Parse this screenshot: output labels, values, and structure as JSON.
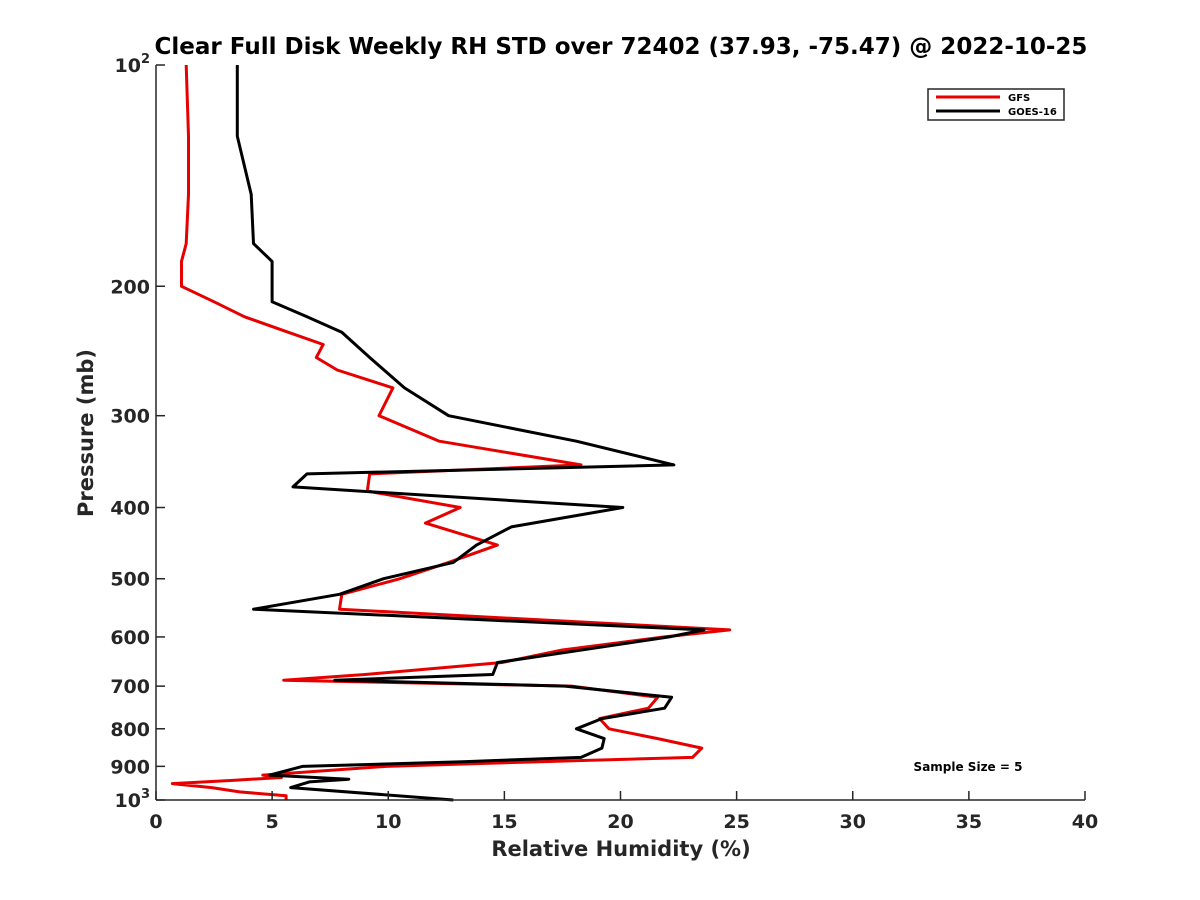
{
  "chart_data": {
    "type": "line",
    "title": "Clear Full Disk Weekly RH STD over 72402 (37.93, -75.47) @ 2022-10-25",
    "xlabel": "Relative Humidity (%)",
    "ylabel": "Pressure (mb)",
    "xlim": [
      0,
      40
    ],
    "ylim": [
      100,
      1000
    ],
    "yscale": "log",
    "y_reversed": true,
    "grid": false,
    "legend_position": "top-right",
    "x_ticks": [
      0,
      5,
      10,
      15,
      20,
      25,
      30,
      35,
      40
    ],
    "x_tick_labels": [
      "0",
      "5",
      "10",
      "15",
      "20",
      "25",
      "30",
      "35",
      "40"
    ],
    "y_ticks": [
      100,
      200,
      300,
      400,
      500,
      600,
      700,
      800,
      900,
      1000
    ],
    "y_tick_labels": [
      "10^2",
      "200",
      "300",
      "400",
      "500",
      "600",
      "700",
      "800",
      "900",
      "10^3"
    ],
    "annotation": "Sample Size = 5",
    "series": [
      {
        "name": "GFS",
        "color": "#e60000",
        "points": [
          [
            1.3,
            100
          ],
          [
            1.4,
            125
          ],
          [
            1.4,
            150
          ],
          [
            1.3,
            175
          ],
          [
            1.1,
            185
          ],
          [
            1.1,
            200
          ],
          [
            2.5,
            210
          ],
          [
            3.8,
            220
          ],
          [
            5.7,
            231
          ],
          [
            7.2,
            240
          ],
          [
            6.9,
            250
          ],
          [
            7.8,
            260
          ],
          [
            10.2,
            275
          ],
          [
            9.6,
            300
          ],
          [
            12.2,
            325
          ],
          [
            18.3,
            350
          ],
          [
            9.2,
            360
          ],
          [
            9.1,
            380
          ],
          [
            13.1,
            400
          ],
          [
            11.6,
            420
          ],
          [
            14.7,
            450
          ],
          [
            12.6,
            475
          ],
          [
            10.5,
            500
          ],
          [
            8.0,
            525
          ],
          [
            7.9,
            550
          ],
          [
            24.7,
            587
          ],
          [
            21.9,
            600
          ],
          [
            17.5,
            625
          ],
          [
            14.9,
            650
          ],
          [
            9.0,
            675
          ],
          [
            5.5,
            687
          ],
          [
            17.9,
            700
          ],
          [
            21.6,
            725
          ],
          [
            21.2,
            750
          ],
          [
            19.1,
            775
          ],
          [
            19.5,
            800
          ],
          [
            21.6,
            825
          ],
          [
            23.5,
            850
          ],
          [
            23.1,
            875
          ],
          [
            16.5,
            887
          ],
          [
            9.9,
            900
          ],
          [
            4.6,
            925
          ],
          [
            5.4,
            932
          ],
          [
            3.4,
            940
          ],
          [
            0.7,
            950
          ],
          [
            2.4,
            962
          ],
          [
            3.6,
            975
          ],
          [
            5.6,
            987
          ],
          [
            5.6,
            1000
          ]
        ]
      },
      {
        "name": "GOES-16",
        "color": "#000000",
        "points": [
          [
            3.5,
            100
          ],
          [
            3.5,
            125
          ],
          [
            4.1,
            150
          ],
          [
            4.2,
            175
          ],
          [
            5.0,
            185
          ],
          [
            5.0,
            200
          ],
          [
            5.0,
            210
          ],
          [
            6.5,
            220
          ],
          [
            8.0,
            231
          ],
          [
            9.2,
            250
          ],
          [
            10.7,
            275
          ],
          [
            12.6,
            300
          ],
          [
            18.1,
            325
          ],
          [
            22.3,
            350
          ],
          [
            6.5,
            360
          ],
          [
            5.9,
            375
          ],
          [
            20.1,
            400
          ],
          [
            15.3,
            425
          ],
          [
            13.8,
            450
          ],
          [
            12.8,
            475
          ],
          [
            9.8,
            500
          ],
          [
            7.9,
            525
          ],
          [
            4.2,
            550
          ],
          [
            23.6,
            587
          ],
          [
            22.1,
            600
          ],
          [
            14.7,
            650
          ],
          [
            14.5,
            675
          ],
          [
            7.7,
            687
          ],
          [
            17.6,
            700
          ],
          [
            22.2,
            725
          ],
          [
            21.9,
            750
          ],
          [
            19.2,
            775
          ],
          [
            18.1,
            800
          ],
          [
            19.3,
            825
          ],
          [
            19.2,
            850
          ],
          [
            18.3,
            875
          ],
          [
            13.2,
            887
          ],
          [
            6.3,
            900
          ],
          [
            4.9,
            925
          ],
          [
            8.3,
            937
          ],
          [
            6.6,
            945
          ],
          [
            5.8,
            962
          ],
          [
            12.8,
            1000
          ]
        ]
      }
    ]
  }
}
